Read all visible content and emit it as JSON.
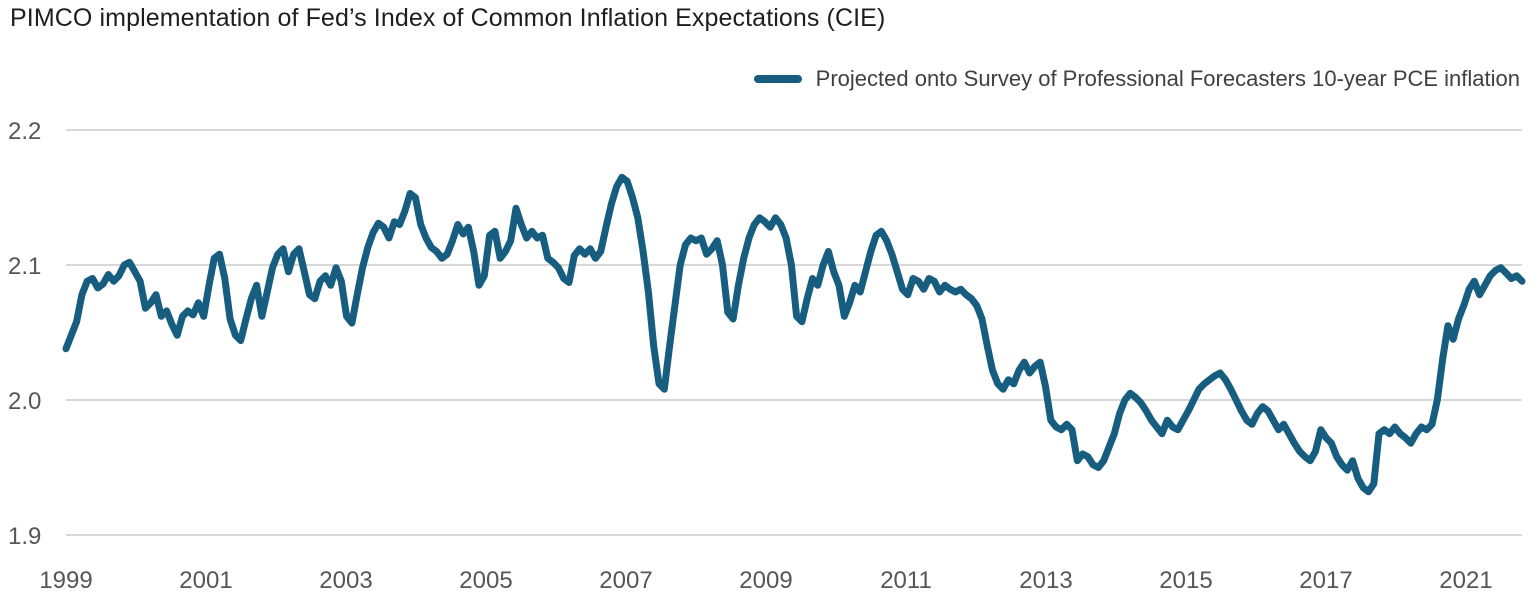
{
  "chart_data": {
    "type": "line",
    "title": "PIMCO implementation of Fed’s Index of Common Inflation Expectations (CIE)",
    "legend": "Projected onto Survey of Professional Forecasters 10-year PCE inflation",
    "xlabel": "",
    "ylabel": "",
    "x_start_year": 1999,
    "points_per_year": 12,
    "x_tick_labels": [
      "1999",
      "2001",
      "2003",
      "2005",
      "2007",
      "2009",
      "2011",
      "2013",
      "2015",
      "2017",
      "2021"
    ],
    "y_ticks": [
      "2.2",
      "2.1",
      "2.0",
      "1.9"
    ],
    "ylim": [
      1.9,
      2.2
    ],
    "grid": true,
    "legend_position": "top-right",
    "line_color": "#175d80",
    "grid_color": "#cccccc",
    "tick_color": "#55565a",
    "values": [
      2.038,
      2.048,
      2.058,
      2.078,
      2.088,
      2.09,
      2.083,
      2.086,
      2.093,
      2.088,
      2.092,
      2.1,
      2.102,
      2.095,
      2.088,
      2.068,
      2.072,
      2.078,
      2.062,
      2.066,
      2.056,
      2.048,
      2.062,
      2.066,
      2.063,
      2.072,
      2.062,
      2.085,
      2.105,
      2.108,
      2.09,
      2.06,
      2.048,
      2.044,
      2.06,
      2.075,
      2.085,
      2.062,
      2.08,
      2.098,
      2.108,
      2.112,
      2.095,
      2.108,
      2.112,
      2.095,
      2.078,
      2.075,
      2.088,
      2.092,
      2.085,
      2.098,
      2.088,
      2.062,
      2.057,
      2.078,
      2.098,
      2.113,
      2.124,
      2.131,
      2.128,
      2.12,
      2.132,
      2.13,
      2.14,
      2.153,
      2.15,
      2.13,
      2.12,
      2.113,
      2.11,
      2.105,
      2.108,
      2.118,
      2.13,
      2.123,
      2.128,
      2.11,
      2.085,
      2.092,
      2.122,
      2.125,
      2.105,
      2.11,
      2.118,
      2.142,
      2.13,
      2.12,
      2.125,
      2.12,
      2.122,
      2.105,
      2.102,
      2.098,
      2.09,
      2.087,
      2.107,
      2.112,
      2.108,
      2.112,
      2.105,
      2.11,
      2.128,
      2.145,
      2.158,
      2.165,
      2.162,
      2.15,
      2.135,
      2.11,
      2.08,
      2.04,
      2.012,
      2.008,
      2.04,
      2.07,
      2.1,
      2.115,
      2.12,
      2.118,
      2.12,
      2.108,
      2.112,
      2.118,
      2.1,
      2.065,
      2.06,
      2.085,
      2.105,
      2.12,
      2.13,
      2.135,
      2.132,
      2.128,
      2.135,
      2.13,
      2.12,
      2.1,
      2.062,
      2.058,
      2.075,
      2.09,
      2.085,
      2.1,
      2.11,
      2.095,
      2.085,
      2.062,
      2.072,
      2.085,
      2.08,
      2.095,
      2.11,
      2.122,
      2.125,
      2.118,
      2.108,
      2.095,
      2.082,
      2.078,
      2.09,
      2.088,
      2.082,
      2.09,
      2.088,
      2.08,
      2.085,
      2.082,
      2.08,
      2.082,
      2.078,
      2.075,
      2.07,
      2.06,
      2.04,
      2.022,
      2.012,
      2.008,
      2.015,
      2.012,
      2.022,
      2.028,
      2.02,
      2.025,
      2.028,
      2.01,
      1.985,
      1.98,
      1.978,
      1.982,
      1.978,
      1.955,
      1.96,
      1.958,
      1.952,
      1.95,
      1.955,
      1.965,
      1.975,
      1.99,
      2.0,
      2.005,
      2.002,
      1.998,
      1.992,
      1.985,
      1.98,
      1.975,
      1.985,
      1.98,
      1.978,
      1.985,
      1.992,
      2.0,
      2.008,
      2.012,
      2.015,
      2.018,
      2.02,
      2.015,
      2.008,
      2.0,
      1.992,
      1.985,
      1.982,
      1.99,
      1.995,
      1.992,
      1.985,
      1.978,
      1.982,
      1.975,
      1.968,
      1.962,
      1.958,
      1.955,
      1.962,
      1.978,
      1.972,
      1.968,
      1.958,
      1.952,
      1.948,
      1.955,
      1.942,
      1.935,
      1.932,
      1.938,
      1.975,
      1.978,
      1.975,
      1.98,
      1.975,
      1.972,
      1.968,
      1.975,
      1.98,
      1.978,
      1.982,
      2.0,
      2.03,
      2.055,
      2.045,
      2.06,
      2.07,
      2.082,
      2.088,
      2.078,
      2.085,
      2.092,
      2.096,
      2.098,
      2.094,
      2.09,
      2.092,
      2.088
    ]
  }
}
